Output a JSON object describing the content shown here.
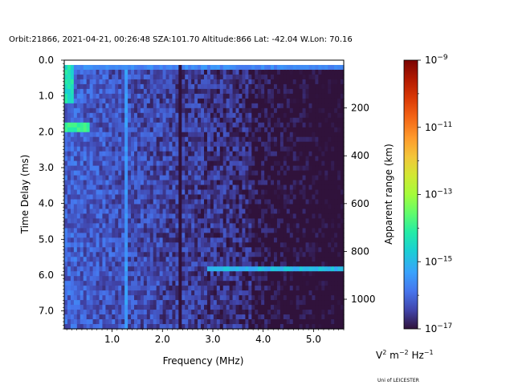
{
  "header": "Orbit:21866, 2021-04-21, 00:26:48 SZA:101.70 Altitude:866 Lat: -42.04 W.Lon: 70.16",
  "credit": "Uni of LEICESTER",
  "chart_data": {
    "type": "heatmap",
    "xlabel": "Frequency (MHz)",
    "ylabel": "Time Delay (ms)",
    "y2label": "Apparent range (km)",
    "colorbar_label": "V^2 m^-2 Hz^-1",
    "xlim": [
      0.05,
      5.6
    ],
    "ylim": [
      7.5,
      0.0
    ],
    "y2lim": [
      0,
      1124
    ],
    "x_ticks": [
      1.0,
      2.0,
      3.0,
      4.0,
      5.0
    ],
    "x_tick_labels": [
      "1.0",
      "2.0",
      "3.0",
      "4.0",
      "5.0"
    ],
    "y_ticks": [
      0.0,
      1.0,
      2.0,
      3.0,
      4.0,
      5.0,
      6.0,
      7.0
    ],
    "y_tick_labels": [
      "0.0",
      "1.0",
      "2.0",
      "3.0",
      "4.0",
      "5.0",
      "6.0",
      "7.0"
    ],
    "y2_ticks": [
      200,
      400,
      600,
      800,
      1000
    ],
    "y2_tick_labels": [
      "200",
      "400",
      "600",
      "800",
      "1000"
    ],
    "colorbar": {
      "scale": "log",
      "range": [
        1e-17,
        1e-09
      ],
      "ticks": [
        -17,
        -15,
        -13,
        -11,
        -9
      ],
      "tick_labels": [
        "10^-17",
        "10^-15",
        "10^-13",
        "10^-11",
        "10^-9"
      ],
      "colormap": "turbo"
    },
    "features": [
      {
        "kind": "horizontal_band",
        "y": 0.15,
        "x_range": [
          0.05,
          5.6
        ],
        "log10_level": -15.6
      },
      {
        "kind": "horizontal_band",
        "y": 1.9,
        "x_range": [
          0.05,
          0.55
        ],
        "log10_level": -14.0
      },
      {
        "kind": "horizontal_band",
        "y": 5.8,
        "x_range": [
          2.9,
          5.6
        ],
        "log10_level": -15.0
      },
      {
        "kind": "vertical_band",
        "x": 1.3,
        "y_range": [
          0.1,
          7.5
        ],
        "log10_level": -15.0
      },
      {
        "kind": "vertical_band",
        "x": 2.35,
        "y_range": [
          0.2,
          7.5
        ],
        "log10_level": -17.0
      },
      {
        "kind": "low_frequency_region",
        "x_range": [
          0.05,
          0.25
        ],
        "y_range": [
          0.1,
          1.2
        ],
        "log10_level": -14.0
      }
    ]
  }
}
